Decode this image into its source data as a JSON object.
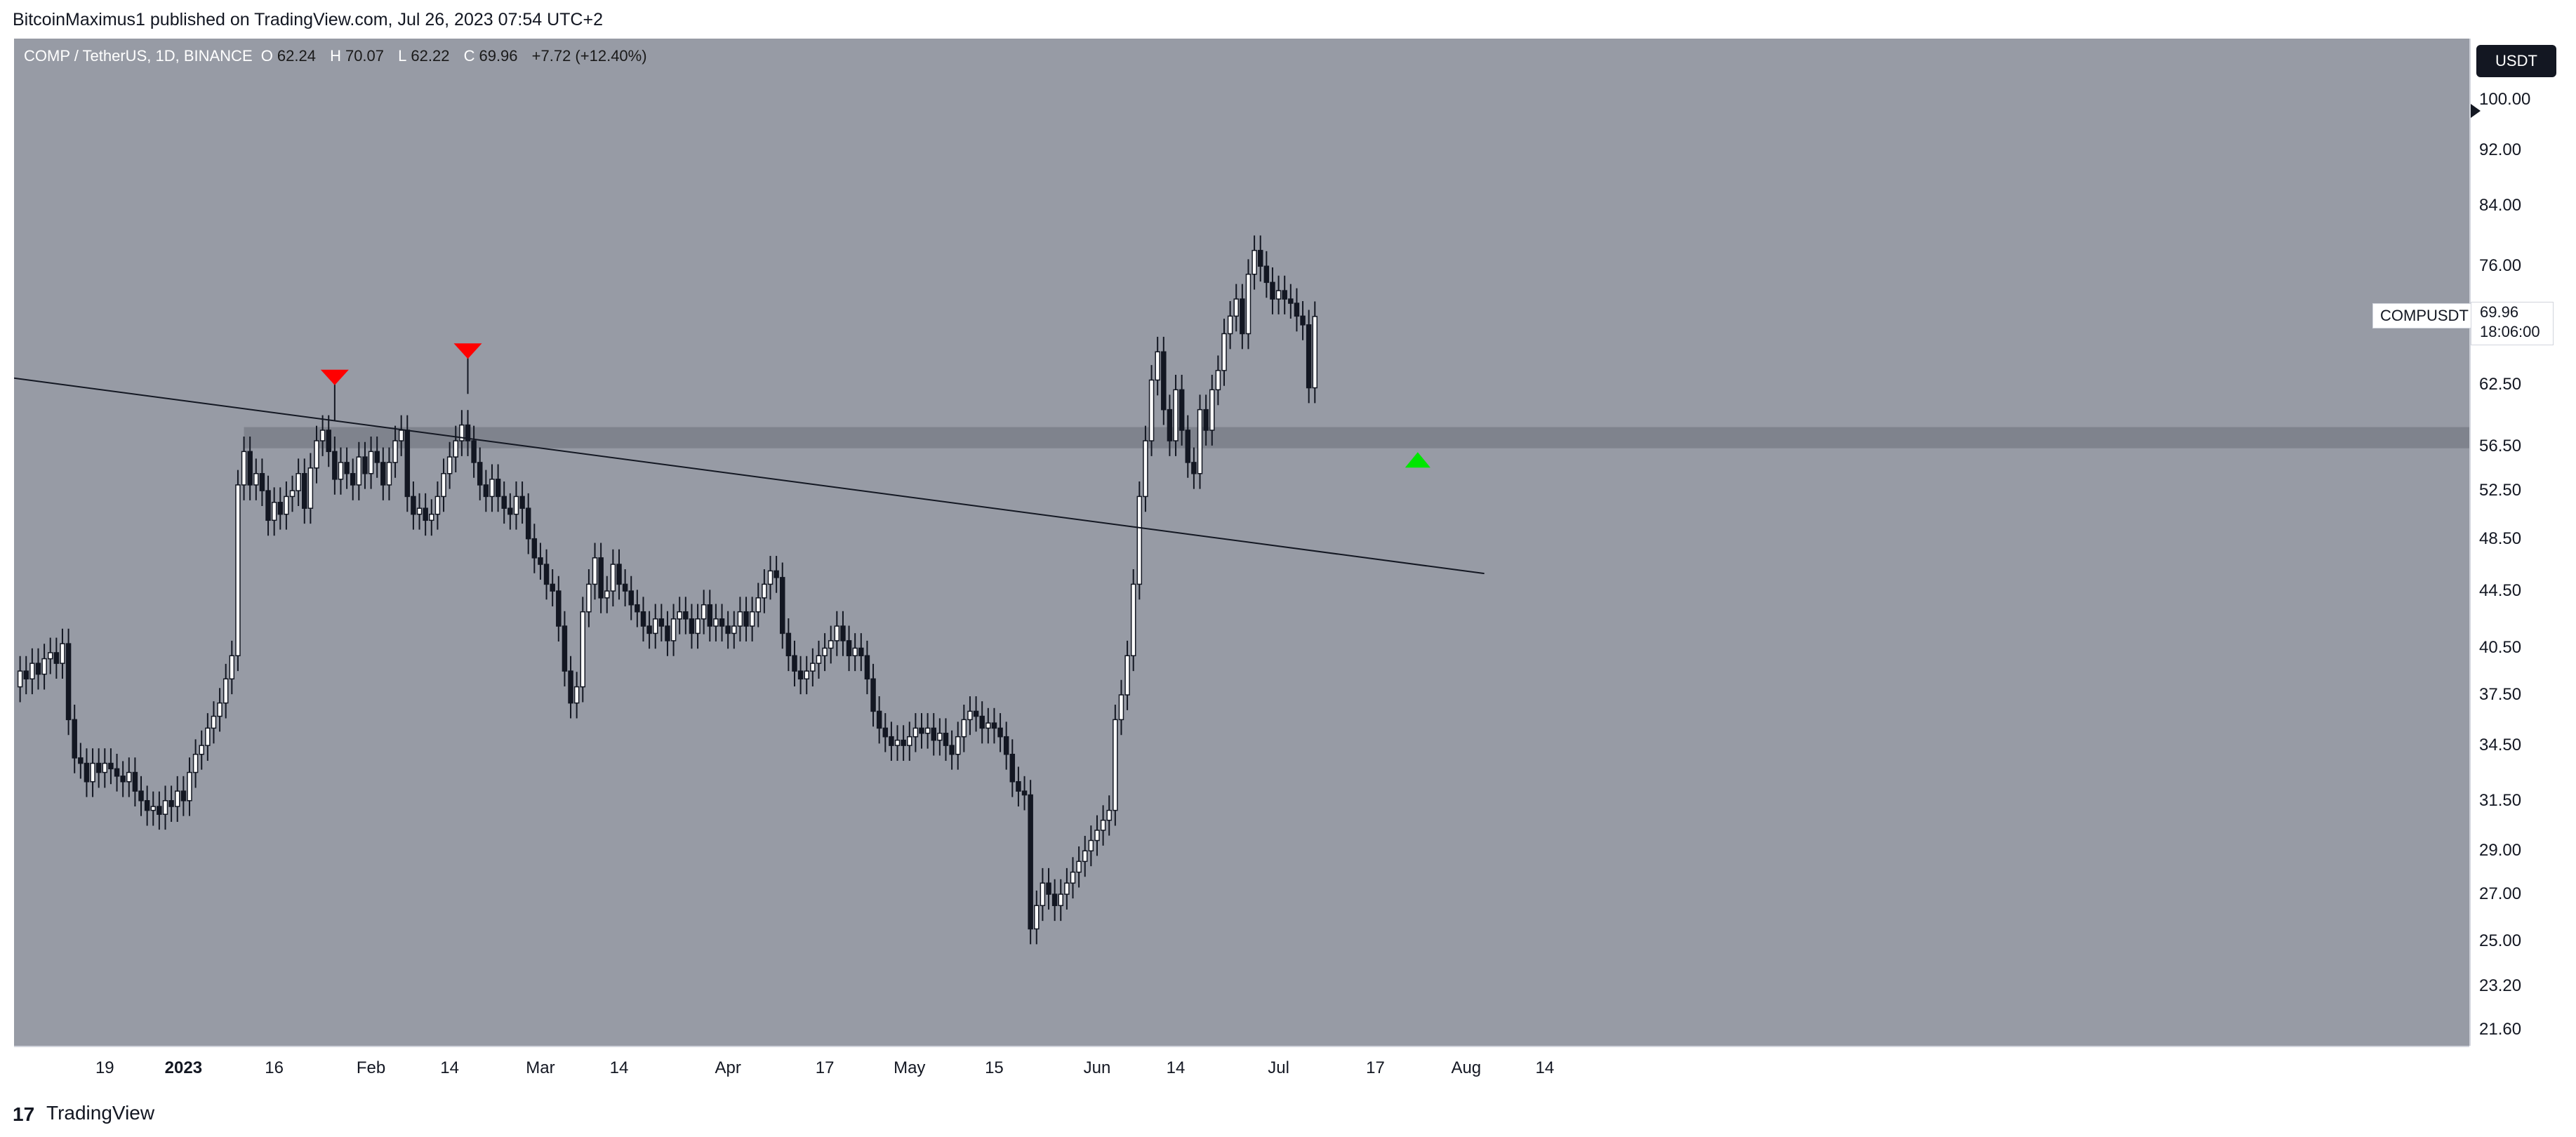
{
  "header": {
    "published_text": "BitcoinMaximus1 published on TradingView.com, Jul 26, 2023 07:54 UTC+2"
  },
  "legend": {
    "symbol": "COMP / TetherUS, 1D, BINANCE",
    "o_label": "O",
    "o_value": "62.24",
    "h_label": "H",
    "h_value": "70.07",
    "l_label": "L",
    "l_value": "62.22",
    "c_label": "C",
    "c_value": "69.96",
    "change": "+7.72 (+12.40%)"
  },
  "currency_button": "USDT",
  "last_price": {
    "symbol": "COMPUSDT",
    "price": "69.96",
    "countdown": "18:06:00"
  },
  "footer": {
    "logo": "17",
    "brand": "TradingView"
  },
  "colors": {
    "background": "#979ba5",
    "up_candle": "#ffffff",
    "down_candle": "#131722",
    "zone": "#7f838d",
    "resistance_marker": "#ff0000",
    "support_marker": "#00e600"
  },
  "chart_data": {
    "type": "candlestick",
    "scale": "log",
    "y_ticks": [
      "100.00",
      "92.00",
      "84.00",
      "76.00",
      "62.50",
      "56.50",
      "52.50",
      "48.50",
      "44.50",
      "40.50",
      "37.50",
      "34.50",
      "31.50",
      "29.00",
      "27.00",
      "25.00",
      "23.20",
      "21.60"
    ],
    "x_ticks": [
      {
        "label": "19",
        "bold": false
      },
      {
        "label": "2023",
        "bold": true
      },
      {
        "label": "16",
        "bold": false
      },
      {
        "label": "Feb",
        "bold": false
      },
      {
        "label": "14",
        "bold": false
      },
      {
        "label": "Mar",
        "bold": false
      },
      {
        "label": "14",
        "bold": false
      },
      {
        "label": "Apr",
        "bold": false
      },
      {
        "label": "17",
        "bold": false
      },
      {
        "label": "May",
        "bold": false
      },
      {
        "label": "15",
        "bold": false
      },
      {
        "label": "Jun",
        "bold": false
      },
      {
        "label": "14",
        "bold": false
      },
      {
        "label": "Jul",
        "bold": false
      },
      {
        "label": "17",
        "bold": false
      },
      {
        "label": "Aug",
        "bold": false
      },
      {
        "label": "14",
        "bold": false
      }
    ],
    "horizontal_zone": {
      "low": 56.3,
      "high": 58.3,
      "from": "2023-01-11",
      "to": "right-edge"
    },
    "descending_line": {
      "start": {
        "date": "2022-12-04",
        "price": 63.2
      },
      "end": {
        "date": "2023-08-04",
        "price": 45.8
      }
    },
    "markers": [
      {
        "type": "resistance",
        "date": "2023-01-26",
        "price": 63.2
      },
      {
        "type": "resistance",
        "date": "2023-02-17",
        "price": 66.0
      },
      {
        "type": "support",
        "date": "2023-07-24",
        "price": 55.3
      }
    ],
    "price_path_daily_close": {
      "start_date": "2022-12-04",
      "closes": [
        38.0,
        39.0,
        38.5,
        39.5,
        38.8,
        39.8,
        40.2,
        39.5,
        40.8,
        36.0,
        33.8,
        33.5,
        32.5,
        33.5,
        33.0,
        33.5,
        33.2,
        32.8,
        32.5,
        33.0,
        32.0,
        31.5,
        31.0,
        31.2,
        30.8,
        31.5,
        31.2,
        32.0,
        31.5,
        33.0,
        34.0,
        34.5,
        35.5,
        36.2,
        37.0,
        38.5,
        40.0,
        53.0,
        56.0,
        53.0,
        54.0,
        52.5,
        50.0,
        51.5,
        50.5,
        52.0,
        52.5,
        54.0,
        51.0,
        54.5,
        57.0,
        58.0,
        56.0,
        53.5,
        55.0,
        54.0,
        53.0,
        55.5,
        54.0,
        56.0,
        55.0,
        53.0,
        55.0,
        57.0,
        58.0,
        52.0,
        50.5,
        51.0,
        50.0,
        50.5,
        52.0,
        54.0,
        55.5,
        57.0,
        58.5,
        57.0,
        55.0,
        53.0,
        52.0,
        53.5,
        52.0,
        51.0,
        50.5,
        52.0,
        51.0,
        48.5,
        47.0,
        46.5,
        45.0,
        44.5,
        42.0,
        39.0,
        37.0,
        38.0,
        43.0,
        45.0,
        47.0,
        44.0,
        44.5,
        46.5,
        45.0,
        44.5,
        43.5,
        43.0,
        42.0,
        41.5,
        42.5,
        42.0,
        41.0,
        42.5,
        43.0,
        42.5,
        41.5,
        42.5,
        43.5,
        42.0,
        42.5,
        42.0,
        41.5,
        42.0,
        43.0,
        42.0,
        43.0,
        44.0,
        45.0,
        46.0,
        45.5,
        41.5,
        40.0,
        39.0,
        38.5,
        39.0,
        39.5,
        40.0,
        40.5,
        41.0,
        42.0,
        41.0,
        40.0,
        40.5,
        40.0,
        38.5,
        36.5,
        35.5,
        35.0,
        34.5,
        34.8,
        34.5,
        35.0,
        35.5,
        35.2,
        35.5,
        34.8,
        35.2,
        34.5,
        34.0,
        35.0,
        36.0,
        36.5,
        36.2,
        35.5,
        35.8,
        35.5,
        35.0,
        34.0,
        32.5,
        32.0,
        31.8,
        25.5,
        26.5,
        27.5,
        27.0,
        26.5,
        27.0,
        27.5,
        28.0,
        28.5,
        29.0,
        29.5,
        30.0,
        30.5,
        31.0,
        36.0,
        37.5,
        40.0,
        45.0,
        52.0,
        57.0,
        63.0,
        66.0,
        60.0,
        57.0,
        62.0,
        58.0,
        55.0,
        54.0,
        60.0,
        58.0,
        62.0,
        64.0,
        68.0,
        70.0,
        72.0,
        68.0,
        75.0,
        78.0,
        76.0,
        74.0,
        72.0,
        73.0,
        72.0,
        71.5,
        70.0,
        69.0,
        62.2,
        69.96
      ]
    }
  }
}
